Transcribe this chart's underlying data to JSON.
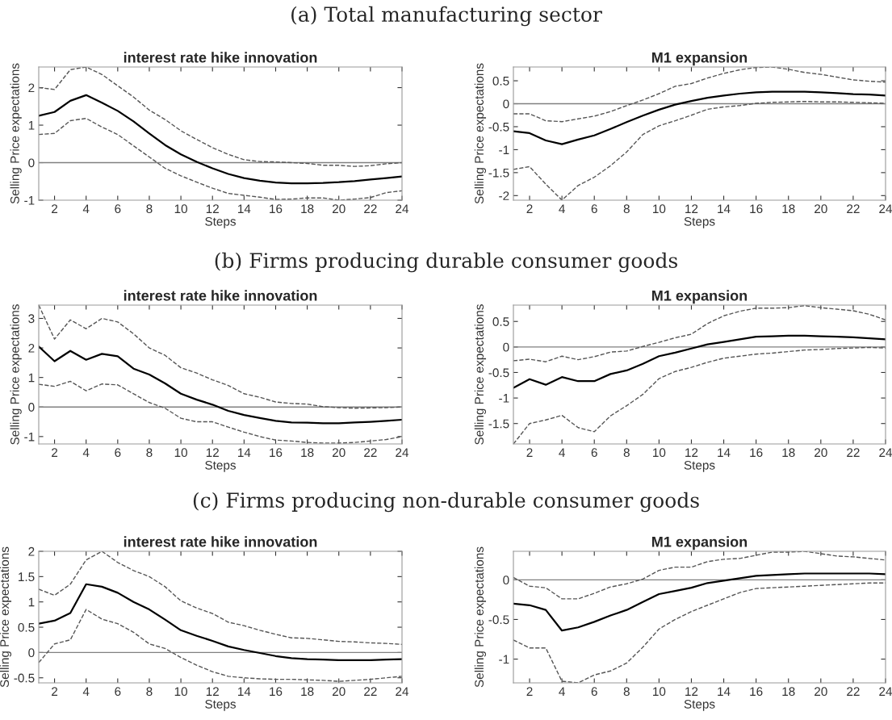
{
  "chart_data": [
    {
      "type": "line",
      "title": "interest rate hike innovation",
      "xlabel": "Steps",
      "ylabel": "Selling Price expectations",
      "annotations": [
        "(a) Total manufacturing sector"
      ],
      "x": [
        1,
        2,
        3,
        4,
        5,
        6,
        7,
        8,
        9,
        10,
        11,
        12,
        13,
        14,
        15,
        16,
        17,
        18,
        19,
        20,
        21,
        22,
        23,
        24
      ],
      "xlim": [
        1,
        24
      ],
      "xticks": [
        2,
        4,
        6,
        8,
        10,
        12,
        14,
        16,
        18,
        20,
        22,
        24
      ],
      "ylim": [
        -1,
        2.55
      ],
      "yticks": [
        -1,
        0,
        1,
        2
      ],
      "grid": false,
      "ref_lines": [
        {
          "axis": "y",
          "value": 0,
          "color": "#808080"
        }
      ],
      "series": [
        {
          "color": "#000000",
          "line_style": "solid",
          "values": [
            1.25,
            1.35,
            1.65,
            1.8,
            1.6,
            1.38,
            1.1,
            0.78,
            0.47,
            0.22,
            0.02,
            -0.15,
            -0.3,
            -0.41,
            -0.48,
            -0.53,
            -0.55,
            -0.55,
            -0.54,
            -0.52,
            -0.49,
            -0.45,
            -0.41,
            -0.37
          ]
        },
        {
          "color": "#555555",
          "line_style": "dashed",
          "values": [
            2.0,
            1.95,
            2.48,
            2.55,
            2.35,
            2.05,
            1.75,
            1.4,
            1.15,
            0.85,
            0.62,
            0.4,
            0.22,
            0.08,
            0.03,
            0.02,
            0,
            -0.02,
            -0.07,
            -0.07,
            -0.1,
            -0.08,
            -0.03,
            0
          ]
        },
        {
          "color": "#555555",
          "line_style": "dashed",
          "values": [
            0.75,
            0.78,
            1.12,
            1.18,
            0.95,
            0.75,
            0.45,
            0.15,
            -0.15,
            -0.35,
            -0.52,
            -0.68,
            -0.82,
            -0.87,
            -0.92,
            -0.98,
            -0.97,
            -0.94,
            -0.94,
            -1.0,
            -0.97,
            -0.93,
            -0.8,
            -0.75
          ]
        }
      ]
    },
    {
      "type": "line",
      "title": "M1 expansion",
      "xlabel": "Steps",
      "ylabel": "Selling Price expectations",
      "x": [
        1,
        2,
        3,
        4,
        5,
        6,
        7,
        8,
        9,
        10,
        11,
        12,
        13,
        14,
        15,
        16,
        17,
        18,
        19,
        20,
        21,
        22,
        23,
        24
      ],
      "xlim": [
        1,
        24
      ],
      "xticks": [
        2,
        4,
        6,
        8,
        10,
        12,
        14,
        16,
        18,
        20,
        22,
        24
      ],
      "ylim": [
        -2.1,
        0.8
      ],
      "yticks": [
        -2,
        -1.5,
        -1,
        -0.5,
        0,
        0.5
      ],
      "grid": false,
      "ref_lines": [
        {
          "axis": "y",
          "value": 0,
          "color": "#808080"
        }
      ],
      "series": [
        {
          "color": "#000000",
          "line_style": "solid",
          "values": [
            -0.6,
            -0.64,
            -0.8,
            -0.88,
            -0.78,
            -0.69,
            -0.55,
            -0.4,
            -0.26,
            -0.13,
            -0.02,
            0.06,
            0.13,
            0.18,
            0.22,
            0.25,
            0.26,
            0.26,
            0.26,
            0.25,
            0.23,
            0.21,
            0.2,
            0.18
          ]
        },
        {
          "color": "#555555",
          "line_style": "dashed",
          "values": [
            -0.22,
            -0.22,
            -0.37,
            -0.39,
            -0.33,
            -0.27,
            -0.17,
            -0.04,
            0.08,
            0.22,
            0.38,
            0.44,
            0.56,
            0.66,
            0.74,
            0.79,
            0.8,
            0.75,
            0.68,
            0.64,
            0.58,
            0.52,
            0.49,
            0.47
          ]
        },
        {
          "color": "#555555",
          "line_style": "dashed",
          "values": [
            -1.43,
            -1.37,
            -1.75,
            -2.1,
            -1.78,
            -1.6,
            -1.35,
            -1.05,
            -0.67,
            -0.48,
            -0.37,
            -0.25,
            -0.12,
            -0.07,
            -0.04,
            0.01,
            0.03,
            0.04,
            0.05,
            0.04,
            0.04,
            0.03,
            0.02,
            0.01
          ]
        }
      ]
    },
    {
      "type": "line",
      "title": "interest rate hike innovation",
      "xlabel": "Steps",
      "ylabel": "Selling Price expectations",
      "annotations": [
        "(b) Firms producing durable consumer goods"
      ],
      "x": [
        1,
        2,
        3,
        4,
        5,
        6,
        7,
        8,
        9,
        10,
        11,
        12,
        13,
        14,
        15,
        16,
        17,
        18,
        19,
        20,
        21,
        22,
        23,
        24
      ],
      "xlim": [
        1,
        24
      ],
      "xticks": [
        2,
        4,
        6,
        8,
        10,
        12,
        14,
        16,
        18,
        20,
        22,
        24
      ],
      "ylim": [
        -1.25,
        3.45
      ],
      "yticks": [
        -1,
        0,
        1,
        2,
        3
      ],
      "grid": false,
      "ref_lines": [
        {
          "axis": "y",
          "value": 0,
          "color": "#808080"
        }
      ],
      "series": [
        {
          "color": "#000000",
          "line_style": "solid",
          "values": [
            2.05,
            1.55,
            1.9,
            1.6,
            1.8,
            1.72,
            1.3,
            1.1,
            0.8,
            0.45,
            0.25,
            0.08,
            -0.13,
            -0.27,
            -0.37,
            -0.47,
            -0.52,
            -0.53,
            -0.55,
            -0.55,
            -0.52,
            -0.5,
            -0.47,
            -0.43
          ]
        },
        {
          "color": "#555555",
          "line_style": "dashed",
          "values": [
            3.45,
            2.3,
            2.95,
            2.65,
            3.0,
            2.88,
            2.48,
            2.0,
            1.75,
            1.33,
            1.15,
            0.92,
            0.73,
            0.45,
            0.33,
            0.17,
            0.12,
            0.1,
            0.01,
            -0.02,
            -0.04,
            -0.03,
            -0.02,
            0
          ]
        },
        {
          "color": "#555555",
          "line_style": "dashed",
          "values": [
            0.77,
            0.7,
            0.87,
            0.55,
            0.78,
            0.75,
            0.45,
            0.15,
            -0.04,
            -0.38,
            -0.5,
            -0.5,
            -0.68,
            -0.85,
            -1.0,
            -1.12,
            -1.15,
            -1.2,
            -1.22,
            -1.22,
            -1.2,
            -1.15,
            -1.1,
            -1.0
          ]
        }
      ]
    },
    {
      "type": "line",
      "title": "M1 expansion",
      "xlabel": "Steps",
      "ylabel": "Selling Price expectations",
      "x": [
        1,
        2,
        3,
        4,
        5,
        6,
        7,
        8,
        9,
        10,
        11,
        12,
        13,
        14,
        15,
        16,
        17,
        18,
        19,
        20,
        21,
        22,
        23,
        24
      ],
      "xlim": [
        1,
        24
      ],
      "xticks": [
        2,
        4,
        6,
        8,
        10,
        12,
        14,
        16,
        18,
        20,
        22,
        24
      ],
      "ylim": [
        -1.9,
        0.82
      ],
      "yticks": [
        -1.5,
        -1,
        -0.5,
        0,
        0.5
      ],
      "grid": false,
      "ref_lines": [
        {
          "axis": "y",
          "value": 0,
          "color": "#808080"
        }
      ],
      "series": [
        {
          "color": "#000000",
          "line_style": "solid",
          "values": [
            -0.8,
            -0.63,
            -0.74,
            -0.59,
            -0.67,
            -0.67,
            -0.53,
            -0.46,
            -0.33,
            -0.18,
            -0.11,
            -0.03,
            0.05,
            0.1,
            0.15,
            0.2,
            0.21,
            0.22,
            0.22,
            0.21,
            0.2,
            0.19,
            0.17,
            0.15
          ]
        },
        {
          "color": "#555555",
          "line_style": "dashed",
          "values": [
            -0.27,
            -0.24,
            -0.29,
            -0.18,
            -0.25,
            -0.19,
            -0.1,
            -0.08,
            0.01,
            0.09,
            0.18,
            0.25,
            0.46,
            0.61,
            0.7,
            0.76,
            0.76,
            0.77,
            0.81,
            0.77,
            0.74,
            0.71,
            0.64,
            0.53
          ]
        },
        {
          "color": "#555555",
          "line_style": "dashed",
          "values": [
            -1.9,
            -1.5,
            -1.43,
            -1.34,
            -1.58,
            -1.66,
            -1.35,
            -1.15,
            -0.93,
            -0.62,
            -0.48,
            -0.4,
            -0.3,
            -0.22,
            -0.18,
            -0.14,
            -0.12,
            -0.09,
            -0.06,
            -0.05,
            -0.03,
            -0.02,
            -0.01,
            -0.02
          ]
        }
      ]
    },
    {
      "type": "line",
      "title": "interest rate hike innovation",
      "xlabel": "Steps",
      "ylabel": "Selling Price expectations",
      "annotations": [
        "(c) Firms producing non-durable consumer goods"
      ],
      "x": [
        1,
        2,
        3,
        4,
        5,
        6,
        7,
        8,
        9,
        10,
        11,
        12,
        13,
        14,
        15,
        16,
        17,
        18,
        19,
        20,
        21,
        22,
        23,
        24
      ],
      "xlim": [
        1,
        24
      ],
      "xticks": [
        2,
        4,
        6,
        8,
        10,
        12,
        14,
        16,
        18,
        20,
        22,
        24
      ],
      "ylim": [
        -0.6,
        2
      ],
      "yticks": [
        -0.5,
        0,
        0.5,
        1,
        1.5,
        2
      ],
      "grid": false,
      "ref_lines": [
        {
          "axis": "y",
          "value": 0,
          "color": "#808080"
        }
      ],
      "series": [
        {
          "color": "#000000",
          "line_style": "solid",
          "values": [
            0.57,
            0.63,
            0.78,
            1.35,
            1.3,
            1.18,
            1.0,
            0.85,
            0.65,
            0.44,
            0.33,
            0.23,
            0.12,
            0.05,
            -0.01,
            -0.07,
            -0.11,
            -0.13,
            -0.14,
            -0.15,
            -0.15,
            -0.15,
            -0.14,
            -0.13
          ]
        },
        {
          "color": "#555555",
          "line_style": "dashed",
          "values": [
            1.25,
            1.13,
            1.35,
            1.83,
            2.0,
            1.78,
            1.62,
            1.5,
            1.3,
            1.02,
            0.88,
            0.77,
            0.6,
            0.53,
            0.44,
            0.36,
            0.29,
            0.28,
            0.25,
            0.22,
            0.21,
            0.19,
            0.18,
            0.16
          ]
        },
        {
          "color": "#555555",
          "line_style": "dashed",
          "values": [
            -0.2,
            0.17,
            0.25,
            0.85,
            0.66,
            0.57,
            0.4,
            0.17,
            0.08,
            -0.1,
            -0.25,
            -0.38,
            -0.47,
            -0.5,
            -0.52,
            -0.53,
            -0.53,
            -0.54,
            -0.55,
            -0.57,
            -0.55,
            -0.53,
            -0.5,
            -0.47
          ]
        }
      ]
    },
    {
      "type": "line",
      "title": "M1 expansion",
      "xlabel": "Steps",
      "ylabel": "Selling Price expectations",
      "x": [
        1,
        2,
        3,
        4,
        5,
        6,
        7,
        8,
        9,
        10,
        11,
        12,
        13,
        14,
        15,
        16,
        17,
        18,
        19,
        20,
        21,
        22,
        23,
        24
      ],
      "xlim": [
        1,
        24
      ],
      "xticks": [
        2,
        4,
        6,
        8,
        10,
        12,
        14,
        16,
        18,
        20,
        22,
        24
      ],
      "ylim": [
        -1.3,
        0.36
      ],
      "yticks": [
        -1,
        -0.5,
        0
      ],
      "grid": false,
      "ref_lines": [
        {
          "axis": "y",
          "value": 0,
          "color": "#808080"
        }
      ],
      "series": [
        {
          "color": "#000000",
          "line_style": "solid",
          "values": [
            -0.3,
            -0.32,
            -0.38,
            -0.64,
            -0.6,
            -0.53,
            -0.45,
            -0.38,
            -0.28,
            -0.18,
            -0.14,
            -0.1,
            -0.04,
            -0.01,
            0.02,
            0.05,
            0.06,
            0.07,
            0.08,
            0.08,
            0.08,
            0.08,
            0.08,
            0.07
          ]
        },
        {
          "color": "#555555",
          "line_style": "dashed",
          "values": [
            0.03,
            -0.08,
            -0.1,
            -0.24,
            -0.24,
            -0.17,
            -0.09,
            -0.05,
            0.01,
            0.12,
            0.16,
            0.16,
            0.23,
            0.26,
            0.27,
            0.31,
            0.35,
            0.35,
            0.36,
            0.33,
            0.3,
            0.29,
            0.27,
            0.25
          ]
        },
        {
          "color": "#555555",
          "line_style": "dashed",
          "values": [
            -0.76,
            -0.86,
            -0.86,
            -1.28,
            -1.3,
            -1.2,
            -1.15,
            -1.05,
            -0.85,
            -0.62,
            -0.5,
            -0.4,
            -0.32,
            -0.24,
            -0.16,
            -0.11,
            -0.1,
            -0.09,
            -0.08,
            -0.07,
            -0.06,
            -0.05,
            -0.04,
            -0.04
          ]
        }
      ]
    }
  ]
}
